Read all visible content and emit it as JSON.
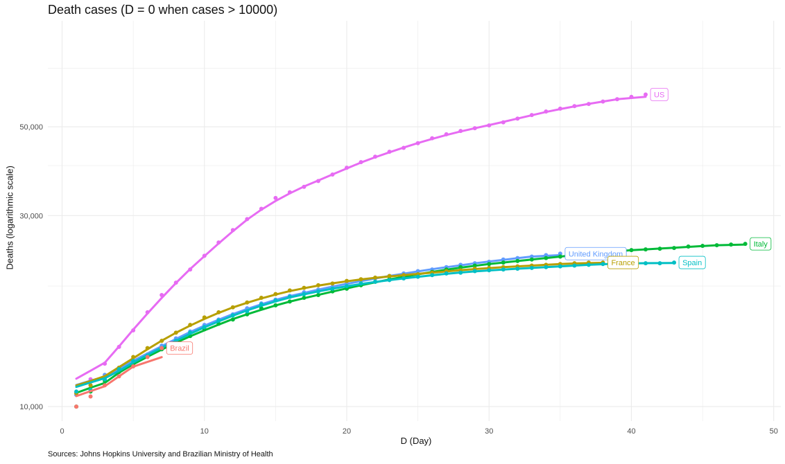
{
  "chart_data": {
    "type": "line",
    "title": "Death cases (D = 0 when cases > 10000)",
    "xlabel": "D (Day)",
    "ylabel": "Deaths (logarithmic scale)",
    "caption": "Sources: Johns Hopkins University and Brazilian Ministry of Health",
    "yscale": "log",
    "xlim": [
      -1,
      50.5
    ],
    "ylim": [
      9200,
      92000
    ],
    "xticks": [
      0,
      10,
      20,
      30,
      40,
      50
    ],
    "yticks": [
      10000,
      30000,
      50000
    ],
    "ytick_labels": [
      "10,000",
      "30,000",
      "50,000"
    ],
    "grid": true,
    "legend": "none (direct labels at series ends)",
    "series": [
      {
        "name": "US",
        "color": "#e76bf3",
        "x": [
          1,
          2,
          3,
          4,
          5,
          6,
          7,
          8,
          9,
          10,
          11,
          12,
          13,
          14,
          15,
          16,
          17,
          18,
          19,
          20,
          21,
          22,
          23,
          24,
          25,
          26,
          27,
          28,
          29,
          30,
          31,
          32,
          33,
          34,
          35,
          36,
          37,
          38,
          39,
          40,
          41
        ],
        "values": [
          10800,
          11700,
          12800,
          14100,
          15500,
          17200,
          19000,
          20400,
          22000,
          23800,
          25700,
          27600,
          29400,
          31200,
          33200,
          34300,
          35400,
          36600,
          38000,
          39500,
          40800,
          42100,
          43300,
          44300,
          45500,
          46800,
          47900,
          48800,
          49600,
          50400,
          51300,
          52400,
          53500,
          54600,
          55500,
          56300,
          57000,
          57800,
          58600,
          59400,
          60200
        ]
      },
      {
        "name": "United Kingdom",
        "color": "#619cff",
        "x": [
          1,
          2,
          3,
          4,
          5,
          6,
          7,
          8,
          9,
          10,
          11,
          12,
          13,
          14,
          15,
          16,
          17,
          18,
          19,
          20,
          21,
          22,
          23,
          24,
          25,
          26,
          27,
          28,
          29,
          30,
          31,
          32,
          33,
          34,
          35
        ],
        "values": [
          10700,
          11300,
          12000,
          12500,
          13000,
          13500,
          14200,
          14800,
          15400,
          16000,
          16500,
          17000,
          17600,
          18100,
          18500,
          18900,
          19300,
          19600,
          19900,
          20300,
          20600,
          20900,
          21200,
          21500,
          21800,
          22000,
          22300,
          22600,
          22800,
          23000,
          23300,
          23500,
          23700,
          23900,
          24100
        ]
      },
      {
        "name": "Italy",
        "color": "#00ba38",
        "x": [
          1,
          2,
          3,
          4,
          5,
          6,
          7,
          8,
          9,
          10,
          11,
          12,
          13,
          14,
          15,
          16,
          17,
          18,
          19,
          20,
          21,
          22,
          23,
          24,
          25,
          26,
          27,
          28,
          29,
          30,
          31,
          32,
          33,
          34,
          35,
          36,
          37,
          38,
          39,
          40,
          41,
          42,
          43,
          44,
          45,
          46,
          47,
          48
        ],
        "values": [
          10000,
          10900,
          11600,
          12200,
          12800,
          13400,
          13900,
          14400,
          15000,
          15600,
          16100,
          16500,
          17000,
          17600,
          17900,
          18300,
          18700,
          19000,
          19400,
          19700,
          20100,
          20500,
          20800,
          21100,
          21400,
          21700,
          22000,
          22300,
          22500,
          22700,
          22900,
          23100,
          23300,
          23500,
          23700,
          23900,
          24100,
          24300,
          24500,
          24600,
          24700,
          24800,
          24900,
          25100,
          25200,
          25300,
          25400,
          25500
        ]
      },
      {
        "name": "France",
        "color": "#b79f00",
        "x": [
          1,
          2,
          3,
          4,
          5,
          6,
          7,
          8,
          9,
          10,
          11,
          12,
          13,
          14,
          15,
          16,
          17,
          18,
          19,
          20,
          21,
          22,
          23,
          24,
          25,
          26,
          27,
          28,
          29,
          30,
          31,
          32,
          33,
          34,
          35,
          36,
          37,
          38
        ],
        "values": [
          10800,
          11300,
          11800,
          12500,
          13300,
          14000,
          14600,
          15300,
          16000,
          16700,
          17200,
          17700,
          18200,
          18700,
          19100,
          19500,
          19800,
          20100,
          20300,
          20600,
          20800,
          21000,
          21200,
          21300,
          21400,
          21600,
          21800,
          21900,
          22100,
          22200,
          22300,
          22400,
          22500,
          22600,
          22700,
          22800,
          22900,
          22900
        ]
      },
      {
        "name": "Spain",
        "color": "#00bfc4",
        "x": [
          1,
          2,
          3,
          4,
          5,
          6,
          7,
          8,
          9,
          10,
          11,
          12,
          13,
          14,
          15,
          16,
          17,
          18,
          19,
          20,
          21,
          22,
          23,
          24,
          25,
          26,
          27,
          28,
          29,
          30,
          31,
          32,
          33,
          34,
          35,
          36,
          37,
          38,
          39,
          40,
          41,
          42,
          43
        ],
        "values": [
          10900,
          11000,
          11700,
          12400,
          13000,
          13400,
          14000,
          14600,
          15300,
          15800,
          16400,
          16900,
          17300,
          18000,
          18400,
          18800,
          19100,
          19400,
          19700,
          20000,
          20300,
          20500,
          20700,
          20900,
          21100,
          21300,
          21500,
          21600,
          21800,
          21900,
          22000,
          22100,
          22200,
          22300,
          22400,
          22500,
          22600,
          22700,
          22800,
          22800,
          22800,
          22800,
          22900
        ]
      },
      {
        "name": "Brazil",
        "color": "#f8766d",
        "x": [
          1,
          2,
          3,
          4,
          5,
          6,
          7
        ],
        "values": [
          10000,
          10600,
          11300,
          11900,
          12600,
          13300,
          14000
        ]
      }
    ]
  }
}
